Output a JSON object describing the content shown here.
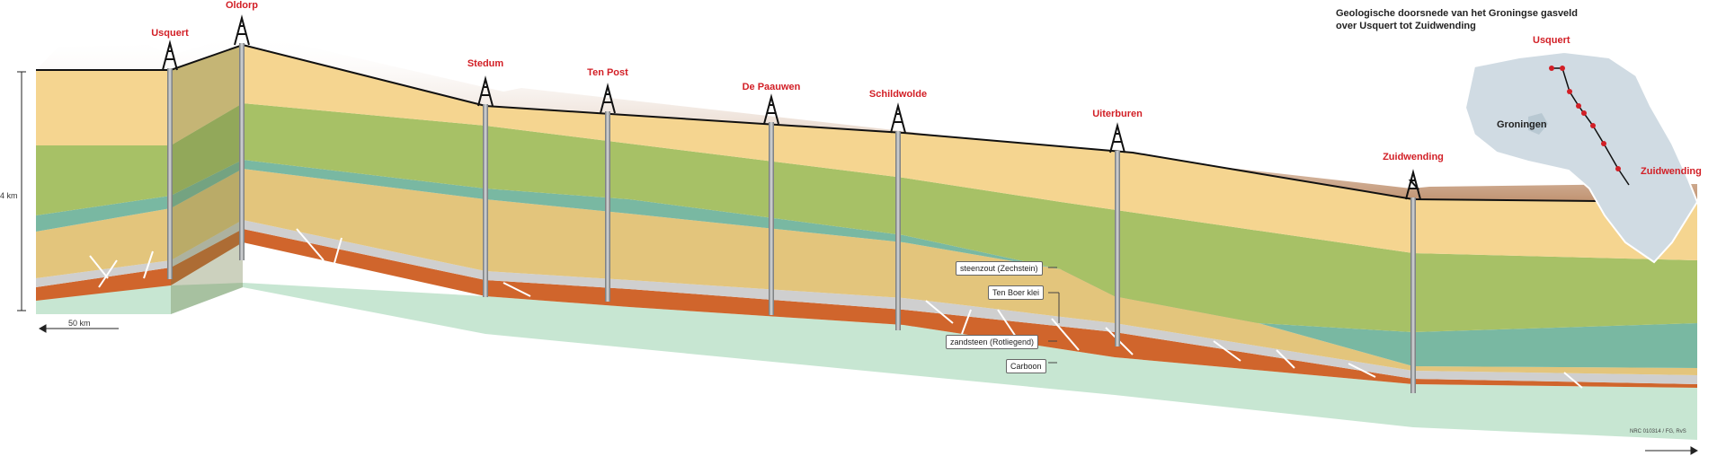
{
  "title": {
    "line1": "Geologische doorsnede van het Groningse gasveld",
    "line2": "over Usquert tot Zuidwending"
  },
  "wells": [
    {
      "name": "Usquert"
    },
    {
      "name": "Oldorp"
    },
    {
      "name": "Stedum"
    },
    {
      "name": "Ten Post"
    },
    {
      "name": "De Paauwen"
    },
    {
      "name": "Schildwolde"
    },
    {
      "name": "Uiterburen"
    },
    {
      "name": "Zuidwending"
    }
  ],
  "layers": [
    {
      "name": "steenzout (Zechstein)"
    },
    {
      "name": "Ten Boer klei"
    },
    {
      "name": "zandsteen (Rotliegend)"
    },
    {
      "name": "Carboon"
    }
  ],
  "scale": {
    "vertical": "4 km",
    "horizontal": "50 km"
  },
  "inset_map": {
    "province": "Groningen",
    "start": "Usquert",
    "end": "Zuidwending"
  },
  "credit": "NRC 010314 / FG, RvS",
  "colors": {
    "town_label": "#d21f26",
    "surface": "#f5d590",
    "green": "#a7c166",
    "teal": "#79b8a2",
    "salt": "#e3c57c",
    "rotliegend": "#d0652c",
    "carboon": "#c7e6d2"
  }
}
